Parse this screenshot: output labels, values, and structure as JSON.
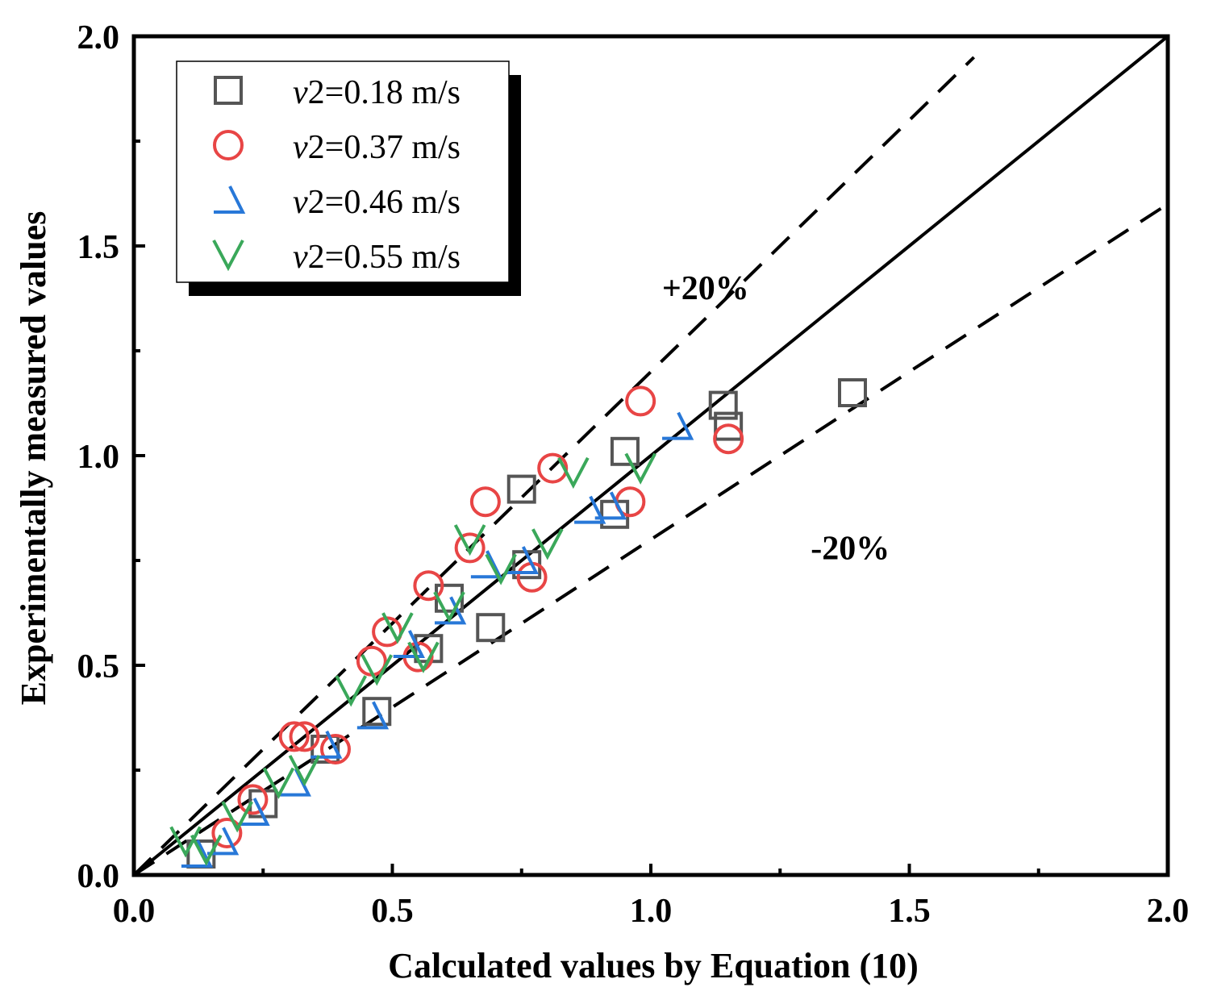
{
  "chart_data": {
    "type": "scatter",
    "title": "",
    "xlabel": "Calculated values by Equation (10)",
    "ylabel": "Experimentally measured values",
    "xlim": [
      0,
      2
    ],
    "ylim": [
      0,
      2
    ],
    "xticks": [
      "0.0",
      "0.5",
      "1.0",
      "1.5",
      "2.0"
    ],
    "yticks": [
      "0.0",
      "0.5",
      "1.0",
      "1.5",
      "2.0"
    ],
    "xtick_values": [
      0,
      0.5,
      1.0,
      1.5,
      2.0
    ],
    "ytick_values": [
      0,
      0.5,
      1.0,
      1.5,
      2.0
    ],
    "minor_ticks": [
      0.25,
      0.75,
      1.25,
      1.75
    ],
    "grid": false,
    "legend_position": "top-left",
    "legend_prefix": "v2",
    "series": [
      {
        "name": "=0.18 m/s",
        "marker": "square",
        "color": "#555555",
        "x": [
          0.13,
          0.25,
          0.37,
          0.47,
          0.57,
          0.61,
          0.69,
          0.75,
          0.76,
          0.93,
          0.95,
          1.14,
          1.15,
          1.39
        ],
        "y": [
          0.05,
          0.17,
          0.3,
          0.39,
          0.54,
          0.66,
          0.59,
          0.92,
          0.74,
          0.86,
          1.01,
          1.12,
          1.07,
          1.15
        ]
      },
      {
        "name": "=0.37 m/s",
        "marker": "circle",
        "color": "#e84545",
        "x": [
          0.18,
          0.23,
          0.31,
          0.33,
          0.39,
          0.46,
          0.49,
          0.55,
          0.57,
          0.65,
          0.68,
          0.77,
          0.81,
          0.96,
          0.98,
          1.15
        ],
        "y": [
          0.1,
          0.18,
          0.33,
          0.33,
          0.3,
          0.51,
          0.58,
          0.52,
          0.69,
          0.78,
          0.89,
          0.71,
          0.97,
          0.89,
          1.13,
          1.04
        ]
      },
      {
        "name": "=0.46 m/s",
        "marker": "triangle",
        "color": "#2878d8",
        "x": [
          0.12,
          0.17,
          0.23,
          0.31,
          0.37,
          0.46,
          0.53,
          0.61,
          0.68,
          0.75,
          0.88,
          0.92,
          1.05
        ],
        "y": [
          0.05,
          0.08,
          0.15,
          0.22,
          0.31,
          0.38,
          0.55,
          0.63,
          0.74,
          0.75,
          0.87,
          0.88,
          1.07
        ]
      },
      {
        "name": "=0.55 m/s",
        "marker": "check",
        "color": "#3aa85a",
        "x": [
          0.1,
          0.14,
          0.2,
          0.28,
          0.33,
          0.42,
          0.47,
          0.51,
          0.56,
          0.61,
          0.65,
          0.71,
          0.8,
          0.85,
          0.98
        ],
        "y": [
          0.08,
          0.06,
          0.14,
          0.22,
          0.25,
          0.44,
          0.49,
          0.59,
          0.52,
          0.64,
          0.8,
          0.73,
          0.79,
          0.96,
          0.97
        ]
      }
    ],
    "reference_lines": [
      {
        "name": "1:1",
        "slope": 1.0,
        "style": "solid"
      },
      {
        "name": "+20%",
        "slope": 1.2,
        "style": "dashed"
      },
      {
        "name": "-20%",
        "slope": 0.8,
        "style": "dashed"
      }
    ],
    "annotations": [
      {
        "text": "+20%",
        "x": 1.02,
        "y": 1.4
      },
      {
        "text": "-20%",
        "x": 1.3,
        "y": 0.78
      }
    ]
  }
}
